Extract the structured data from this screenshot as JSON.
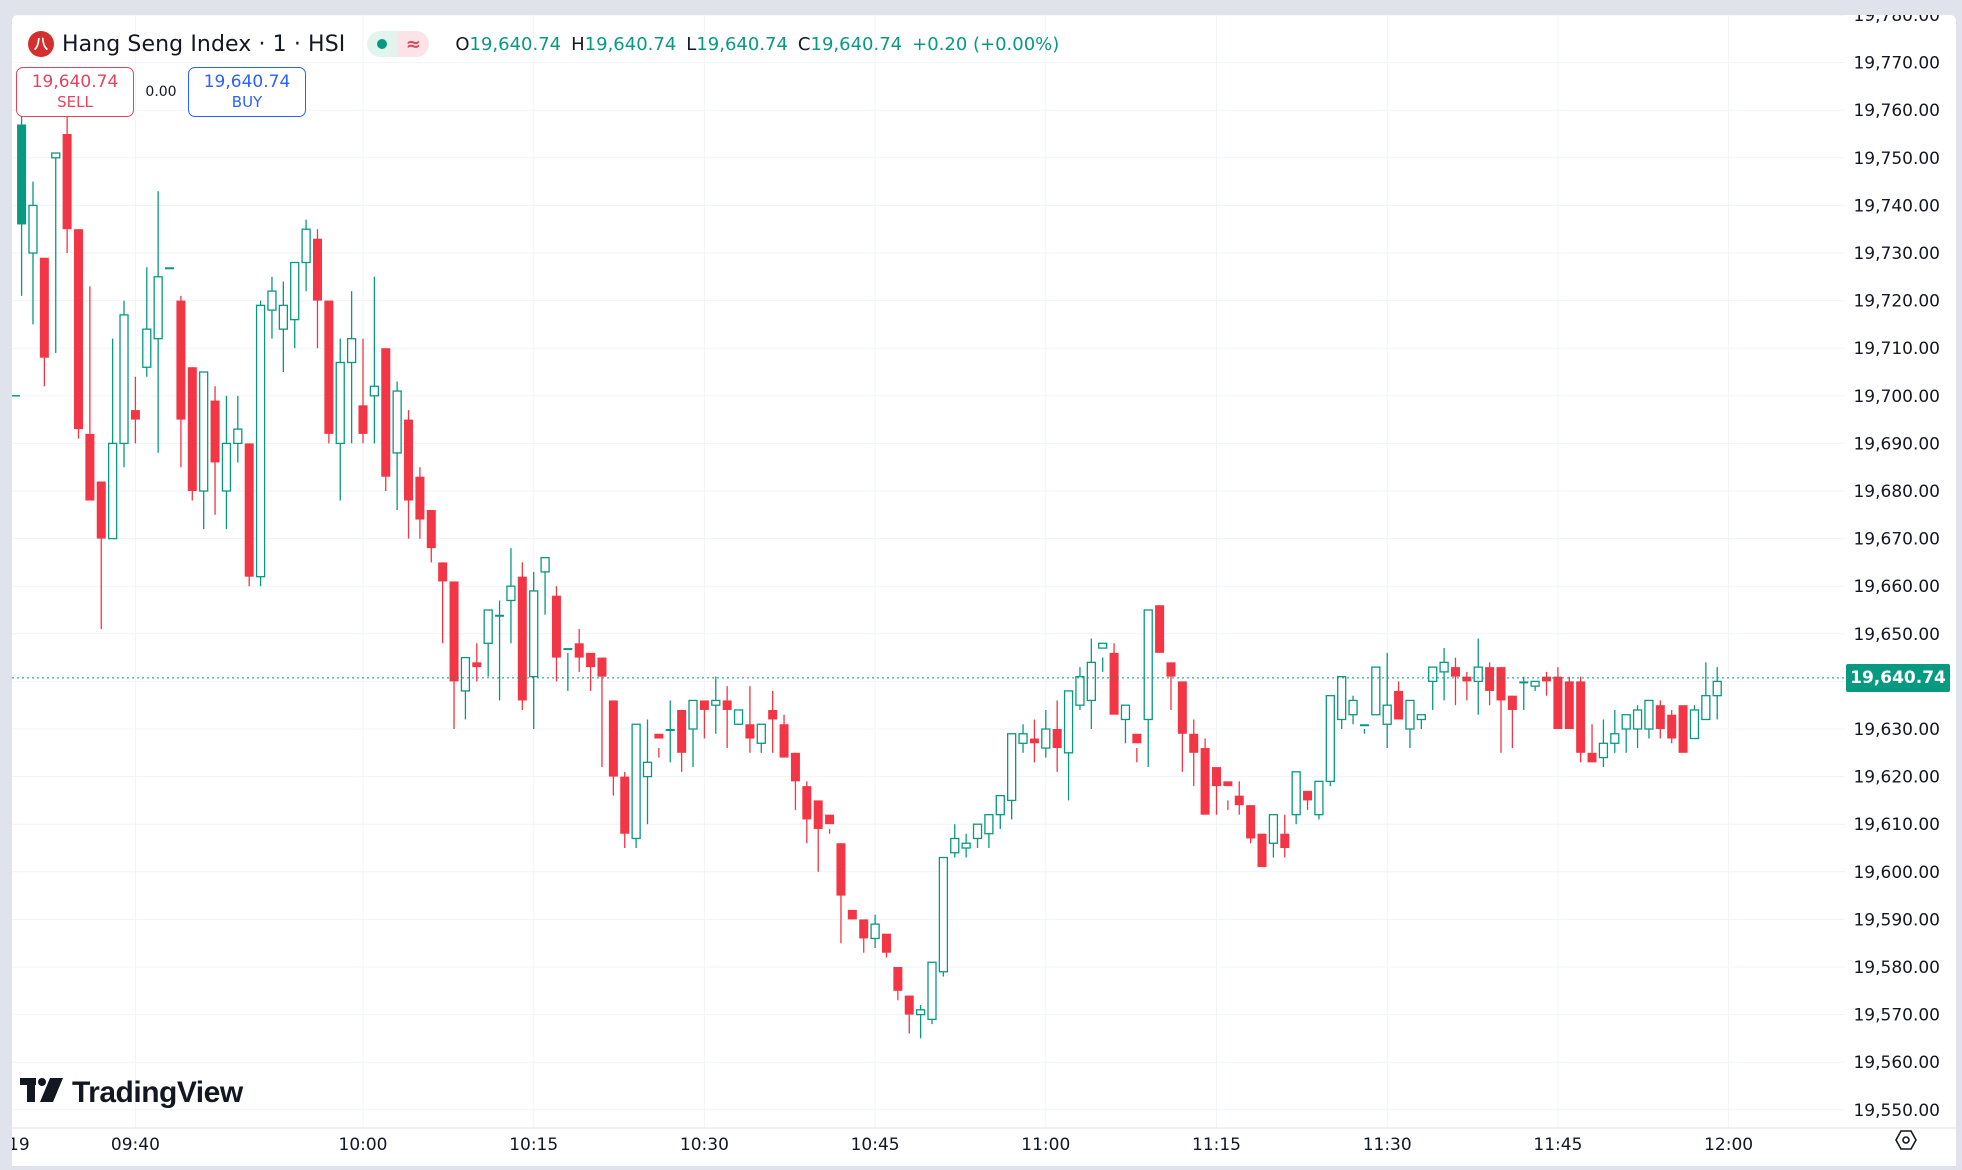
{
  "header": {
    "symbol_title": "Hang Seng Index · 1 · HSI",
    "logo_glyph": "八",
    "market_status": "market-open-dot",
    "delay_icon": "≈",
    "ohlc": {
      "o_label": "O",
      "o_value": "19,640.74",
      "h_label": "H",
      "h_value": "19,640.74",
      "l_label": "L",
      "l_value": "19,640.74",
      "c_label": "C",
      "c_value": "19,640.74",
      "change": "+0.20 (+0.00%)"
    }
  },
  "trade": {
    "sell_price": "19,640.74",
    "sell_label": "SELL",
    "spread": "0.00",
    "buy_price": "19,640.74",
    "buy_label": "BUY"
  },
  "branding": {
    "mark": "17",
    "word": "TradingView"
  },
  "colors": {
    "up": "#089981",
    "down": "#f23645",
    "grid": "#f0f3fa",
    "text": "#131722",
    "last_price_bg": "#089981"
  },
  "last_price_label": "19,640.74",
  "chart_data": {
    "type": "candlestick",
    "title": "Hang Seng Index · 1 · HSI",
    "interval": "1 minute",
    "xlabel": "",
    "ylabel": "",
    "ylim": [
      19545,
      19783
    ],
    "y_ticks": [
      "19,780.00",
      "19,770.00",
      "19,760.00",
      "19,750.00",
      "19,740.00",
      "19,730.00",
      "19,720.00",
      "19,710.00",
      "19,700.00",
      "19,690.00",
      "19,680.00",
      "19,670.00",
      "19,660.00",
      "19,650.00",
      "19,640.00",
      "19,630.00",
      "19,620.00",
      "19,610.00",
      "19,600.00",
      "19,590.00",
      "19,580.00",
      "19,570.00",
      "19,560.00",
      "19,550.00"
    ],
    "x_ticks": [
      "19",
      "09:40",
      "10:00",
      "10:15",
      "10:30",
      "10:45",
      "11:00",
      "11:15",
      "11:30",
      "11:45",
      "12:00"
    ],
    "last_price": 19640.74,
    "prev_close_marker": 19700.0,
    "grid": true,
    "start_time": "09:30",
    "candles": [
      [
        19757,
        19759,
        19721,
        19736
      ],
      [
        19730,
        19745,
        19715,
        19740
      ],
      [
        19729,
        19729,
        19702,
        19708
      ],
      [
        19750,
        19751,
        19709,
        19751
      ],
      [
        19755,
        19759,
        19730,
        19735
      ],
      [
        19735,
        19735,
        19691,
        19693
      ],
      [
        19692,
        19723,
        19692,
        19678
      ],
      [
        19682,
        19682,
        19651,
        19670
      ],
      [
        19670,
        19712,
        19670,
        19690
      ],
      [
        19690,
        19720,
        19685,
        19717
      ],
      [
        19697,
        19704,
        19690,
        19695
      ],
      [
        19706,
        19727,
        19704,
        19714
      ],
      [
        19712,
        19743,
        19688,
        19725
      ],
      [
        19727,
        19726,
        19726,
        19727
      ],
      [
        19720,
        19721,
        19685,
        19695
      ],
      [
        19706,
        19706,
        19678,
        19680
      ],
      [
        19680,
        19705,
        19672,
        19705
      ],
      [
        19699,
        19702,
        19675,
        19686
      ],
      [
        19680,
        19700,
        19672,
        19690
      ],
      [
        19690,
        19700,
        19686,
        19693
      ],
      [
        19690,
        19690,
        19660,
        19662
      ],
      [
        19662,
        19720,
        19660,
        19719
      ],
      [
        19718,
        19725,
        19712,
        19722
      ],
      [
        19714,
        19724,
        19705,
        19719
      ],
      [
        19716,
        19728,
        19710,
        19728
      ],
      [
        19728,
        19737,
        19722,
        19735
      ],
      [
        19733,
        19735,
        19710,
        19720
      ],
      [
        19720,
        19718,
        19690,
        19692
      ],
      [
        19690,
        19712,
        19678,
        19707
      ],
      [
        19707,
        19722,
        19690,
        19712
      ],
      [
        19698,
        19712,
        19690,
        19692
      ],
      [
        19700,
        19725,
        19690,
        19702
      ],
      [
        19710,
        19708,
        19680,
        19683
      ],
      [
        19688,
        19703,
        19676,
        19701
      ],
      [
        19695,
        19697,
        19670,
        19678
      ],
      [
        19683,
        19685,
        19670,
        19674
      ],
      [
        19676,
        19676,
        19665,
        19668
      ],
      [
        19665,
        19665,
        19648,
        19661
      ],
      [
        19661,
        19661,
        19630,
        19640
      ],
      [
        19638,
        19645,
        19632,
        19645
      ],
      [
        19644,
        19648,
        19640,
        19643
      ],
      [
        19648,
        19651,
        19641,
        19655
      ],
      [
        19654,
        19657,
        19636,
        19654
      ],
      [
        19657,
        19668,
        19648,
        19660
      ],
      [
        19662,
        19665,
        19634,
        19636
      ],
      [
        19641,
        19663,
        19630,
        19659
      ],
      [
        19663,
        19666,
        19654,
        19666
      ],
      [
        19658,
        19660,
        19640,
        19645
      ],
      [
        19647,
        19646,
        19638,
        19647
      ],
      [
        19648,
        19651,
        19642,
        19645
      ],
      [
        19646,
        19645,
        19638,
        19643
      ],
      [
        19645,
        19645,
        19622,
        19641
      ],
      [
        19636,
        19636,
        19616,
        19620
      ],
      [
        19620,
        19621,
        19605,
        19608
      ],
      [
        19607,
        19608,
        19605,
        19631
      ],
      [
        19620,
        19632,
        19610,
        19623
      ],
      [
        19629,
        19626,
        19624,
        19628
      ],
      [
        19630,
        19636,
        19623,
        19630
      ],
      [
        19634,
        19631,
        19621,
        19625
      ],
      [
        19630,
        19630,
        19622,
        19636
      ],
      [
        19636,
        19636,
        19628,
        19634
      ],
      [
        19635,
        19641,
        19629,
        19636
      ],
      [
        19636,
        19639,
        19626,
        19634
      ],
      [
        19631,
        19634,
        19631,
        19634
      ],
      [
        19631,
        19639,
        19625,
        19628
      ],
      [
        19627,
        19627,
        19625,
        19631
      ],
      [
        19634,
        19638,
        19625,
        19632
      ],
      [
        19631,
        19633,
        19624,
        19624
      ],
      [
        19625,
        19625,
        19613,
        19619
      ],
      [
        19618,
        19619,
        19606,
        19611
      ],
      [
        19615,
        19613,
        19600,
        19609
      ],
      [
        19612,
        19609,
        19608,
        19610
      ],
      [
        19606,
        19606,
        19585,
        19595
      ],
      [
        19592,
        19592,
        19590,
        19590
      ],
      [
        19590,
        19589,
        19583,
        19586
      ],
      [
        19586,
        19591,
        19584,
        19589
      ],
      [
        19587,
        19585,
        19582,
        19583
      ],
      [
        19580,
        19580,
        19573,
        19575
      ],
      [
        19574,
        19574,
        19566,
        19570
      ],
      [
        19570,
        19572,
        19565,
        19571
      ],
      [
        19569,
        19571,
        19568,
        19581
      ],
      [
        19579,
        19582,
        19578,
        19603
      ],
      [
        19604,
        19610,
        19603,
        19607
      ],
      [
        19605,
        19608,
        19603,
        19606
      ],
      [
        19607,
        19609,
        19605,
        19610
      ],
      [
        19608,
        19611,
        19605,
        19612
      ],
      [
        19612,
        19615,
        19609,
        19616
      ],
      [
        19615,
        19618,
        19611,
        19629
      ],
      [
        19627,
        19631,
        19625,
        19629
      ],
      [
        19628,
        19632,
        19623,
        19627
      ],
      [
        19626,
        19634,
        19624,
        19630
      ],
      [
        19630,
        19636,
        19621,
        19626
      ],
      [
        19625,
        19627,
        19615,
        19638
      ],
      [
        19635,
        19643,
        19634,
        19641
      ],
      [
        19636,
        19649,
        19630,
        19644
      ],
      [
        19647,
        19645,
        19642,
        19648
      ],
      [
        19646,
        19648,
        19637,
        19633
      ],
      [
        19632,
        19634,
        19627,
        19635
      ],
      [
        19629,
        19626,
        19623,
        19627
      ],
      [
        19632,
        19632,
        19622,
        19655
      ],
      [
        19656,
        19656,
        19650,
        19646
      ],
      [
        19644,
        19644,
        19634,
        19641
      ],
      [
        19640,
        19640,
        19621,
        19629
      ],
      [
        19629,
        19632,
        19618,
        19625
      ],
      [
        19626,
        19628,
        19613,
        19612
      ],
      [
        19622,
        19621,
        19612,
        19618
      ],
      [
        19619,
        19615,
        19613,
        19618
      ],
      [
        19616,
        19619,
        19612,
        19614
      ],
      [
        19614,
        19614,
        19606,
        19607
      ],
      [
        19608,
        19608,
        19601,
        19601
      ],
      [
        19606,
        19607,
        19603,
        19612
      ],
      [
        19608,
        19612,
        19603,
        19605
      ],
      [
        19612,
        19620,
        19610,
        19621
      ],
      [
        19617,
        19617,
        19613,
        19615
      ],
      [
        19612,
        19616,
        19611,
        19619
      ],
      [
        19619,
        19632,
        19618,
        19637
      ],
      [
        19632,
        19640,
        19630,
        19641
      ],
      [
        19633,
        19637,
        19631,
        19636
      ],
      [
        19631,
        19629,
        19630,
        19631
      ],
      [
        19633,
        19641,
        19634,
        19643
      ],
      [
        19631,
        19646,
        19626,
        19635
      ],
      [
        19638,
        19640,
        19632,
        19632
      ],
      [
        19630,
        19633,
        19626,
        19636
      ],
      [
        19632,
        19633,
        19630,
        19633
      ],
      [
        19640,
        19643,
        19634,
        19643
      ],
      [
        19642,
        19647,
        19636,
        19644
      ],
      [
        19643,
        19645,
        19635,
        19641
      ],
      [
        19641,
        19642,
        19636,
        19640
      ],
      [
        19640,
        19649,
        19633,
        19643
      ],
      [
        19643,
        19644,
        19635,
        19638
      ],
      [
        19643,
        19643,
        19625,
        19636
      ],
      [
        19637,
        19637,
        19626,
        19634
      ],
      [
        19640,
        19641,
        19634,
        19640
      ],
      [
        19639,
        19639,
        19638,
        19640
      ],
      [
        19641,
        19642,
        19637,
        19640
      ],
      [
        19641,
        19643,
        19634,
        19630
      ],
      [
        19640,
        19641,
        19630,
        19630
      ],
      [
        19640,
        19641,
        19623,
        19625
      ],
      [
        19625,
        19631,
        19625,
        19623
      ],
      [
        19624,
        19632,
        19622,
        19627
      ],
      [
        19627,
        19634,
        19625,
        19629
      ],
      [
        19630,
        19633,
        19625,
        19633
      ],
      [
        19630,
        19635,
        19626,
        19634
      ],
      [
        19630,
        19635,
        19628,
        19636
      ],
      [
        19635,
        19636,
        19628,
        19630
      ],
      [
        19633,
        19634,
        19627,
        19628
      ],
      [
        19635,
        19634,
        19627,
        19625
      ],
      [
        19628,
        19635,
        19628,
        19634
      ],
      [
        19632,
        19644,
        19632,
        19637
      ],
      [
        19637,
        19643,
        19632,
        19640
      ]
    ]
  }
}
